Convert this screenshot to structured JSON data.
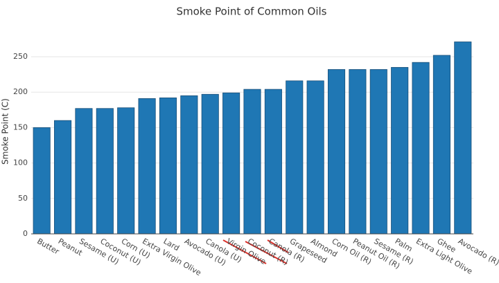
{
  "chart_data": {
    "type": "bar",
    "title": "Smoke Point of Common Oils",
    "y_label": "Smoke Point (C)",
    "categories": [
      "Butter",
      "Peanut",
      "Sesame (U)",
      "Coconut (U)",
      "Corn (U)",
      "Extra Virgin Olive",
      "Lard",
      "Avocado (U)",
      "Canola (U)",
      "Virgin Olive",
      "Coconut (R)",
      "Canola (R)",
      "Grapeseed",
      "Almond",
      "Corn Oil (R)",
      "Peanut Oil (R)",
      "Sesame (R)",
      "Palm",
      "Extra Light Olive",
      "Ghee",
      "Avocado (R)"
    ],
    "values": [
      150,
      160,
      177,
      177,
      178,
      191,
      192,
      195,
      197,
      199,
      204,
      204,
      216,
      216,
      232,
      232,
      232,
      235,
      242,
      252,
      271
    ],
    "color": "#1f77b4",
    "ylim": [
      0,
      280
    ],
    "yticks": [
      0,
      50,
      100,
      150,
      200,
      250
    ],
    "grid": true
  }
}
